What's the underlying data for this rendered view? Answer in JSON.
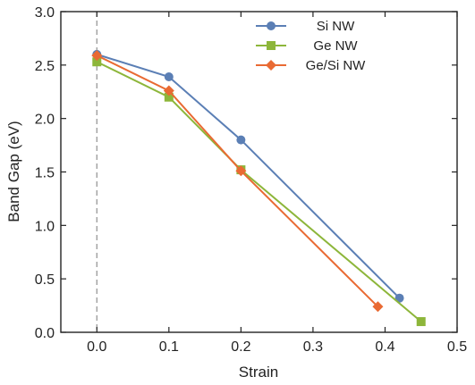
{
  "chart_data": {
    "type": "line",
    "xlabel": "Strain",
    "ylabel": "Band Gap (eV)",
    "xlim": [
      -0.05,
      0.5
    ],
    "ylim": [
      0.0,
      3.0
    ],
    "xticks": [
      "0.0",
      "0.1",
      "0.2",
      "0.3",
      "0.4",
      "0.5"
    ],
    "yticks": [
      "0.0",
      "0.5",
      "1.0",
      "1.5",
      "2.0",
      "2.5",
      "3.0"
    ],
    "reference_line": {
      "x": 0.0,
      "style": "dashed"
    },
    "legend_position": "top-right",
    "grid": false,
    "series": [
      {
        "name": "Si NW",
        "color": "#5b7fb5",
        "marker": "circle",
        "x": [
          0.0,
          0.1,
          0.2,
          0.42
        ],
        "y": [
          2.6,
          2.39,
          1.8,
          0.32
        ]
      },
      {
        "name": "Ge NW",
        "color": "#8db63a",
        "marker": "square",
        "x": [
          0.0,
          0.1,
          0.2,
          0.45
        ],
        "y": [
          2.53,
          2.2,
          1.52,
          0.1
        ]
      },
      {
        "name": "Ge/Si NW",
        "color": "#e96a33",
        "marker": "diamond",
        "x": [
          0.0,
          0.1,
          0.2,
          0.39
        ],
        "y": [
          2.59,
          2.26,
          1.51,
          0.24
        ]
      }
    ]
  }
}
